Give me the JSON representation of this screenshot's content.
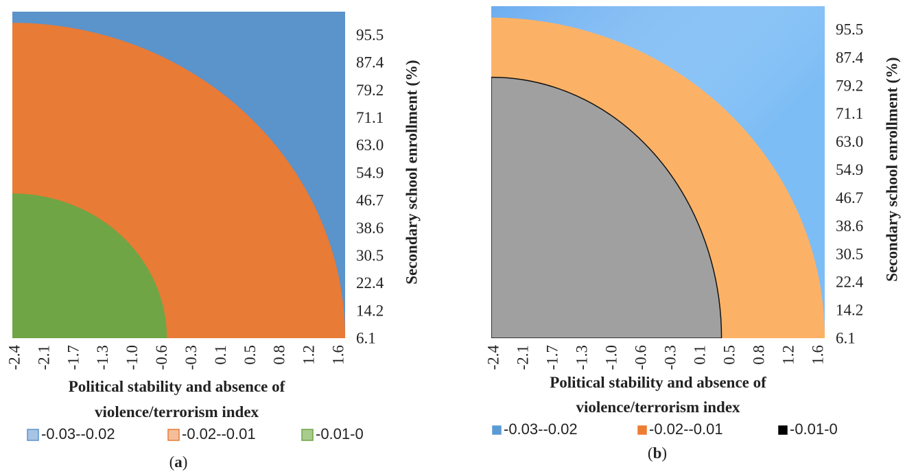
{
  "chart_data": [
    {
      "type": "heatmap",
      "panel_label_prefix": "(",
      "panel_label_letter": "a",
      "panel_label_suffix": ")",
      "xlabel_line1": "Political stability and absence of",
      "xlabel_line2": "violence/terrorism index",
      "ylabel": "Secondary school enrollment (%)",
      "x_ticks": [
        "-2.4",
        "-2.1",
        "-1.7",
        "-1.3",
        "-1.0",
        "-0.6",
        "-0.3",
        "0.1",
        "0.5",
        "0.8",
        "1.2",
        "1.6"
      ],
      "y_ticks": [
        "95.5",
        "87.4",
        "79.2",
        "71.1",
        "63.0",
        "54.9",
        "46.7",
        "38.6",
        "30.5",
        "22.4",
        "14.2",
        "6.1"
      ],
      "xlim": [
        -2.4,
        1.8
      ],
      "ylim": [
        6.1,
        99.5
      ],
      "legend_position": "bottom",
      "series": [
        {
          "name": "-0.03--0.02",
          "color": "#5B93CB",
          "legend_fill": "#A7C4E4",
          "legend_stroke": "#5B93CB"
        },
        {
          "name": "-0.02--0.01",
          "color": "#E87B35",
          "legend_fill": "#F5BE9B",
          "legend_stroke": "#E87B35"
        },
        {
          "name": "-0.01-0",
          "color": "#6FA545",
          "legend_fill": "#A9CC8D",
          "legend_stroke": "#6FA545"
        }
      ],
      "boundaries": [
        {
          "between": [
            "-0.02--0.01",
            "-0.03--0.02"
          ],
          "x_at_ymin": 1.8,
          "y_at_xmin": 96.3,
          "y_at_xmax": 17.5
        },
        {
          "between": [
            "-0.01-0",
            "-0.02--0.01"
          ],
          "x_at_ymin": -0.45,
          "y_at_xmin": 47.5
        }
      ]
    },
    {
      "type": "heatmap",
      "panel_label_prefix": "(",
      "panel_label_letter": "b",
      "panel_label_suffix": ")",
      "xlabel_line1": "Political stability and absence of",
      "xlabel_line2": "violence/terrorism index",
      "ylabel": "Secondary school enrollment (%)",
      "x_ticks": [
        "-2.4",
        "-2.1",
        "-1.7",
        "-1.3",
        "-1.0",
        "-0.6",
        "-0.3",
        "0.1",
        "0.5",
        "0.8",
        "1.2",
        "1.6"
      ],
      "y_ticks": [
        "95.5",
        "87.4",
        "79.2",
        "71.1",
        "63.0",
        "54.9",
        "46.7",
        "38.6",
        "30.5",
        "22.4",
        "14.2",
        "6.1"
      ],
      "xlim": [
        -2.4,
        1.8
      ],
      "ylim": [
        6.1,
        99.5
      ],
      "legend_position": "bottom",
      "series": [
        {
          "name": "-0.03--0.02",
          "color": "#7DBDF5",
          "legend_fill": "#5B9BD5",
          "legend_stroke": "#5B9BD5"
        },
        {
          "name": "-0.02--0.01",
          "color": "#FCB266",
          "legend_fill": "#ED7D31",
          "legend_stroke": "#ED7D31"
        },
        {
          "name": "-0.01-0",
          "color": "#A0A0A0",
          "legend_fill": "#000000",
          "legend_stroke": "#000000"
        }
      ],
      "boundaries": [
        {
          "between": [
            "-0.02--0.01",
            "-0.03--0.02"
          ],
          "x_at_ymin": 1.8,
          "y_at_xmin": 96.3,
          "y_at_xmax": 17.5
        },
        {
          "between": [
            "-0.01-0",
            "-0.02--0.01"
          ],
          "x_at_ymin": 0.5,
          "y_at_xmin": 79.5
        }
      ]
    }
  ]
}
